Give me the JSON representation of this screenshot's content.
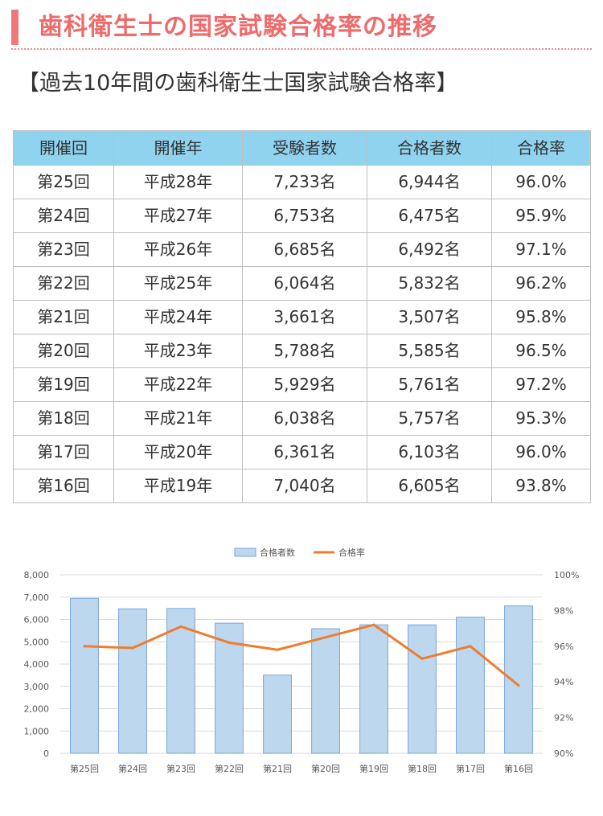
{
  "heading": "歯科衛生士の国家試験合格率の推移",
  "subheading": "【過去10年間の歯科衛生士国家試験合格率】",
  "table": {
    "headers": [
      "開催回",
      "開催年",
      "受験者数",
      "合格者数",
      "合格率"
    ],
    "rows": [
      [
        "第25回",
        "平成28年",
        "7,233名",
        "6,944名",
        "96.0%"
      ],
      [
        "第24回",
        "平成27年",
        "6,753名",
        "6,475名",
        "95.9%"
      ],
      [
        "第23回",
        "平成26年",
        "6,685名",
        "6,492名",
        "97.1%"
      ],
      [
        "第22回",
        "平成25年",
        "6,064名",
        "5,832名",
        "96.2%"
      ],
      [
        "第21回",
        "平成24年",
        "3,661名",
        "3,507名",
        "95.8%"
      ],
      [
        "第20回",
        "平成23年",
        "5,788名",
        "5,585名",
        "96.5%"
      ],
      [
        "第19回",
        "平成22年",
        "5,929名",
        "5,761名",
        "97.2%"
      ],
      [
        "第18回",
        "平成21年",
        "6,038名",
        "5,757名",
        "95.3%"
      ],
      [
        "第17回",
        "平成20年",
        "6,361名",
        "6,103名",
        "96.0%"
      ],
      [
        "第16回",
        "平成19年",
        "7,040名",
        "6,605名",
        "93.8%"
      ]
    ]
  },
  "chart_data": {
    "type": "bar+line",
    "categories": [
      "第25回",
      "第24回",
      "第23回",
      "第22回",
      "第21回",
      "第20回",
      "第19回",
      "第18回",
      "第17回",
      "第16回"
    ],
    "series": [
      {
        "name": "合格者数",
        "type": "bar",
        "axis": "left",
        "color": "#bdd7ee",
        "edge_color": "#7aa6d6",
        "values": [
          6944,
          6475,
          6492,
          5832,
          3507,
          5585,
          5761,
          5757,
          6103,
          6605
        ]
      },
      {
        "name": "合格率",
        "type": "line",
        "axis": "right",
        "color": "#ed7d31",
        "values": [
          96.0,
          95.9,
          97.1,
          96.2,
          95.8,
          96.5,
          97.2,
          95.3,
          96.0,
          93.8
        ]
      }
    ],
    "left_axis": {
      "min": 0,
      "max": 8000,
      "ticks": [
        "0",
        "1,000",
        "2,000",
        "3,000",
        "4,000",
        "5,000",
        "6,000",
        "7,000",
        "8,000"
      ]
    },
    "right_axis": {
      "min": 90,
      "max": 100,
      "ticks": [
        "90%",
        "92%",
        "94%",
        "96%",
        "98%",
        "100%"
      ]
    },
    "grid": true,
    "legend": "top-center"
  }
}
